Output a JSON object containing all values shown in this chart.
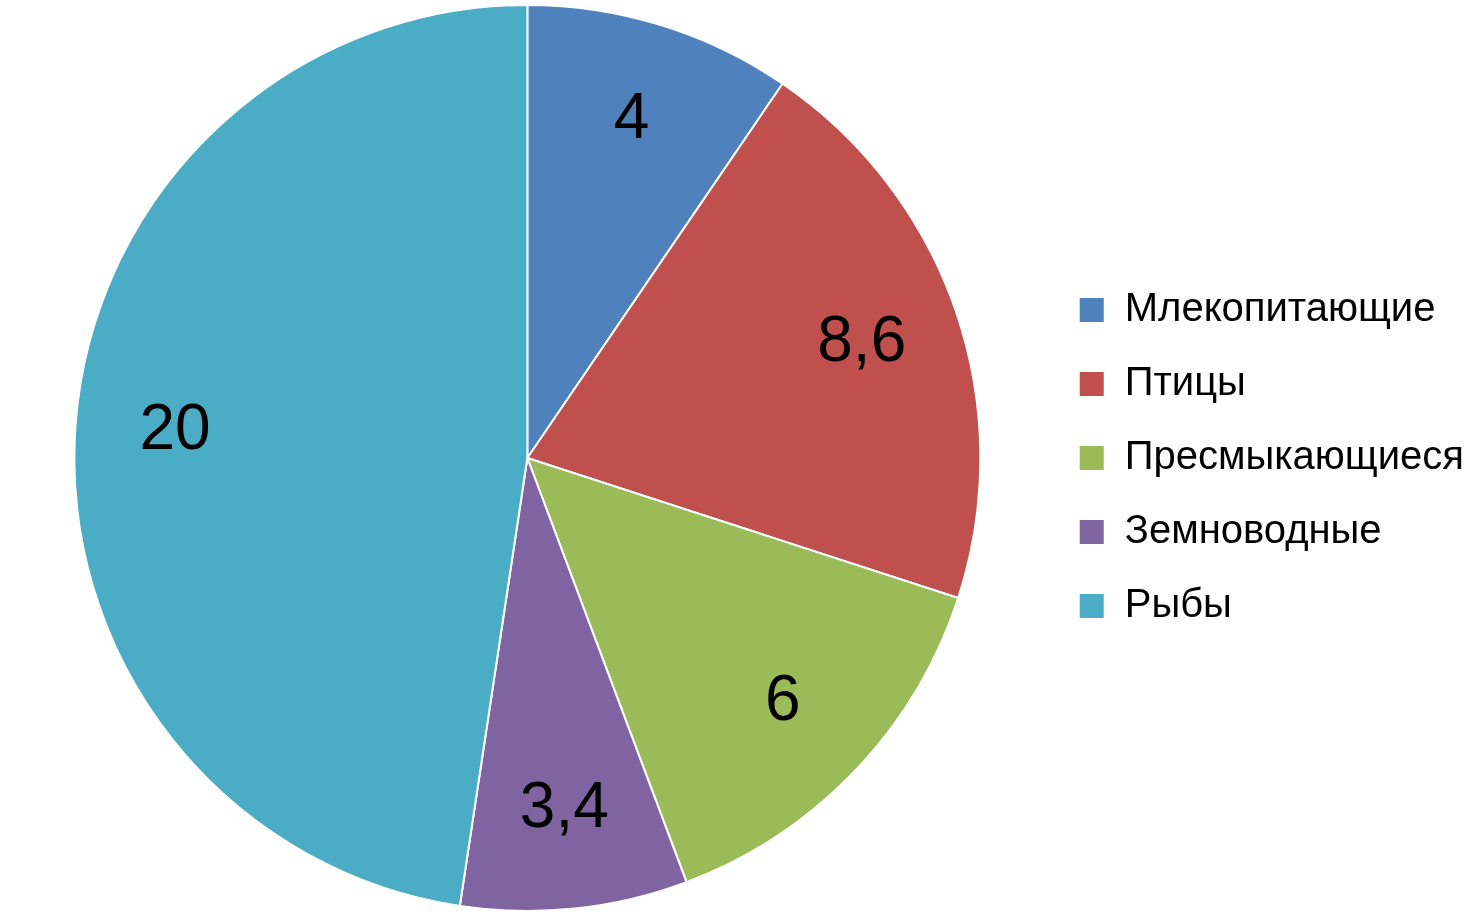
{
  "chart_data": {
    "type": "pie",
    "categories": [
      "Млекопитающие",
      "Птицы",
      "Пресмыкающиеся",
      "Земноводные",
      "Рыбы"
    ],
    "values": [
      4,
      8.6,
      6,
      3.4,
      20
    ],
    "colors": [
      "#4f81bd",
      "#c0504d",
      "#9bbb59",
      "#8064a2",
      "#4bacc6"
    ],
    "value_labels": [
      "4",
      "8,6",
      "6",
      "3,4",
      "20"
    ],
    "legend": "right"
  }
}
